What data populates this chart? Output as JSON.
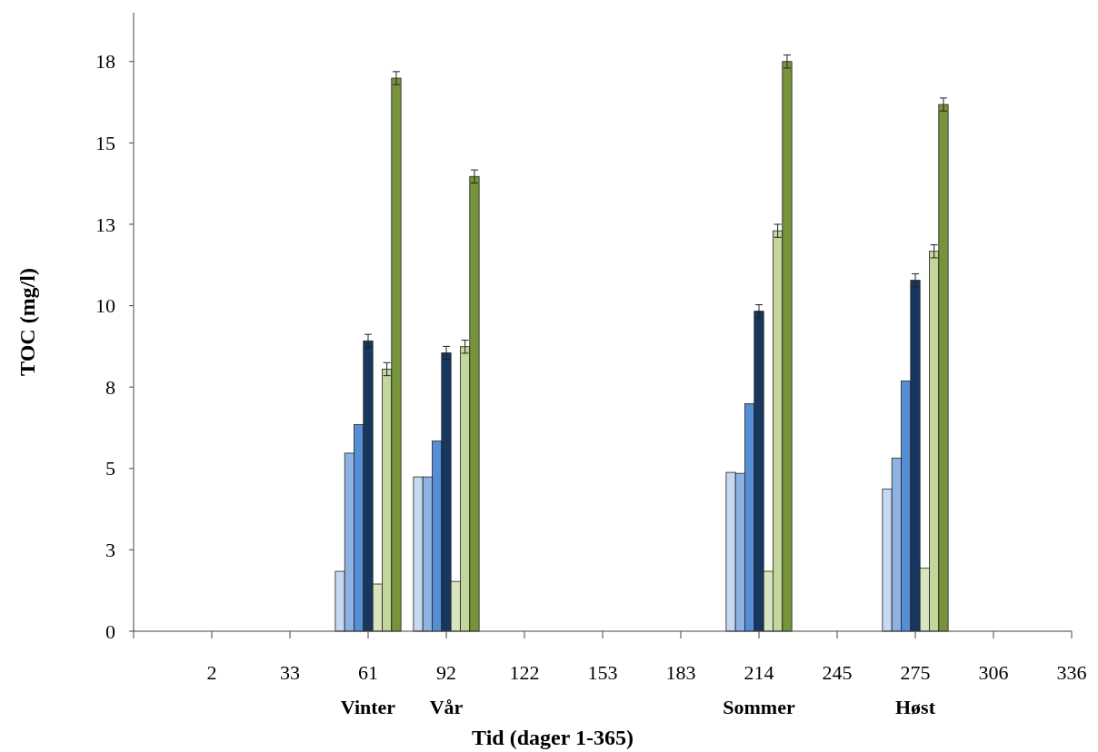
{
  "chart_data": {
    "type": "bar",
    "xlabel": "Tid (dager 1-365)",
    "ylabel": "TOC (mg/l)",
    "categories": [
      null,
      "2",
      "33",
      "61",
      "92",
      "122",
      "153",
      "183",
      "214",
      "245",
      "275",
      "306",
      "336"
    ],
    "ylim": [
      0,
      19
    ],
    "yticks": [
      0,
      {
        "value": 2.5,
        "label": "3"
      },
      5,
      {
        "value": 7.5,
        "label": "8"
      },
      10,
      {
        "value": 12.5,
        "label": "13"
      },
      15,
      {
        "value": 17.5,
        "label": "18"
      }
    ],
    "grid": false,
    "series": [
      {
        "color": "#c6d9f1",
        "values": [
          null,
          null,
          null,
          1.84,
          4.74,
          null,
          null,
          null,
          4.88,
          null,
          4.37,
          null,
          null
        ]
      },
      {
        "color": "#8db3e2",
        "values": [
          null,
          null,
          null,
          5.47,
          4.74,
          null,
          null,
          null,
          4.85,
          null,
          5.32,
          null,
          null
        ]
      },
      {
        "color": "#558ed5",
        "values": [
          null,
          null,
          null,
          6.35,
          5.84,
          null,
          null,
          null,
          6.99,
          null,
          7.69,
          null,
          null
        ]
      },
      {
        "color": "#17375e",
        "values": [
          null,
          null,
          null,
          8.92,
          8.55,
          null,
          null,
          null,
          9.83,
          null,
          10.78,
          null,
          null
        ],
        "errors": [
          null,
          null,
          null,
          0.2,
          0.2,
          null,
          null,
          null,
          0.2,
          null,
          0.2,
          null,
          null
        ]
      },
      {
        "color": "#d7e4bd",
        "values": [
          null,
          null,
          null,
          1.45,
          1.53,
          null,
          null,
          null,
          1.84,
          null,
          1.94,
          null,
          null
        ]
      },
      {
        "color": "#c3d69b",
        "values": [
          null,
          null,
          null,
          8.05,
          8.74,
          null,
          null,
          null,
          12.3,
          null,
          11.67,
          null,
          null
        ],
        "errors": [
          null,
          null,
          null,
          0.2,
          0.2,
          null,
          null,
          null,
          0.2,
          null,
          0.2,
          null,
          null
        ]
      },
      {
        "color": "#77933c",
        "values": [
          null,
          null,
          null,
          16.99,
          13.97,
          null,
          null,
          null,
          17.5,
          null,
          16.18,
          null,
          null
        ],
        "errors": [
          null,
          null,
          null,
          0.2,
          0.2,
          null,
          null,
          null,
          0.2,
          null,
          0.2,
          null,
          null
        ]
      }
    ],
    "annotations": [
      "Vinter",
      "Vår",
      "Sommer",
      "Høst"
    ]
  }
}
